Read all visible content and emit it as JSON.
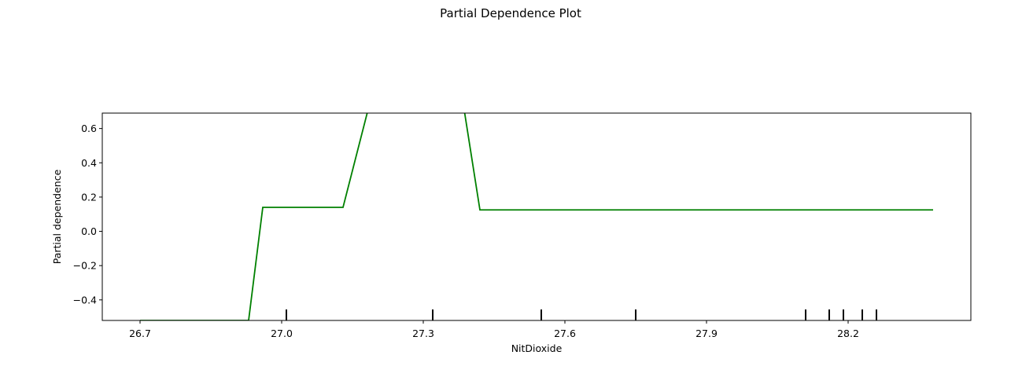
{
  "chart_data": {
    "type": "line",
    "title": "Partial Dependence Plot",
    "xlabel": "NitDioxide",
    "ylabel": "Partial dependence",
    "xlim": [
      26.62,
      28.46
    ],
    "ylim": [
      -0.52,
      0.69
    ],
    "xticks": [
      26.7,
      27.0,
      27.3,
      27.6,
      27.9,
      28.2
    ],
    "xtick_labels": [
      "26.7",
      "27.0",
      "27.3",
      "27.6",
      "27.9",
      "28.2"
    ],
    "yticks": [
      -0.4,
      -0.2,
      0.0,
      0.2,
      0.4,
      0.6
    ],
    "ytick_labels": [
      "−0.4",
      "−0.2",
      "0.0",
      "0.2",
      "0.4",
      "0.6"
    ],
    "grid": false,
    "series": [
      {
        "color": "#008000",
        "x": [
          26.7,
          26.93,
          26.96,
          27.13,
          27.21,
          27.37,
          27.42,
          28.38
        ],
        "y": [
          -0.52,
          -0.52,
          0.14,
          0.14,
          1.0,
          1.0,
          0.125,
          0.125
        ]
      }
    ],
    "rug": [
      27.01,
      27.32,
      27.55,
      27.75,
      28.11,
      28.16,
      28.19,
      28.23,
      28.26
    ]
  }
}
